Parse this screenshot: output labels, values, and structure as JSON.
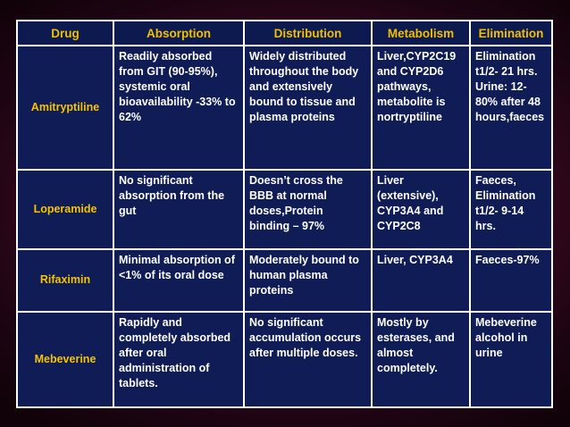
{
  "table": {
    "headers": [
      "Drug",
      "Absorption",
      "Distribution",
      "Metabolism",
      "Elimination"
    ],
    "rows": [
      {
        "drug": "Amitryptiline",
        "absorption": " Readily absorbed from GIT (90-95%), systemic oral bioavailability -33% to 62%",
        "distribution": "Widely distributed throughout the body and extensively bound to tissue and plasma proteins",
        "metabolism": "Liver,CYP2C19 and CYP2D6 pathways, metabolite is nortryptiline",
        "elimination": "Elimination t1/2- 21 hrs. Urine: 12-80% after 48 hours,faeces"
      },
      {
        "drug": "Loperamide",
        "absorption": "No significant absorption from the gut",
        "distribution": " Doesn’t cross the BBB at normal doses,Protein binding – 97%",
        "metabolism": " Liver (extensive), CYP3A4 and CYP2C8",
        "elimination": "Faeces, Elimination t1/2- 9-14 hrs."
      },
      {
        "drug": "Rifaximin",
        "absorption": " Minimal absorption of <1% of its oral dose",
        "distribution": "Moderately bound to human plasma proteins",
        "metabolism": "Liver, CYP3A4",
        "elimination": " Faeces-97%"
      },
      {
        "drug": "Mebeverine",
        "absorption": "Rapidly and completely absorbed after oral administration of tablets.",
        "distribution": " No significant accumulation occurs after multiple doses.",
        "metabolism": "Mostly by esterases, and almost completely.",
        "elimination": "Mebeverine alcohol in urine"
      }
    ]
  },
  "colors": {
    "header_text": "#f0c000",
    "cell_background": "#0f1c55",
    "cell_text": "#ffffff",
    "border": "#ffffff",
    "slide_background": "#3d0a20"
  }
}
